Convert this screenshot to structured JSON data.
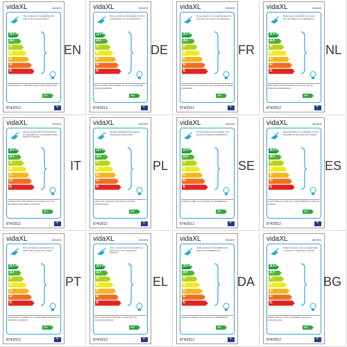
{
  "labels": [
    {
      "lang": "EN",
      "brand": "vidaXL",
      "code": "281403",
      "description": "This luminaire is compatible with bulbs of the energy classes:",
      "note": "The luminaire is sold with a bulb of the energy class:",
      "regulation": "874/2012",
      "class_badge": "A+"
    },
    {
      "lang": "DE",
      "brand": "vidaXL",
      "code": "281403",
      "description": "Diese Leuchte ist kompatibel mit den Leuchtmitteln der Energieklassen:",
      "note": "Diese Leuchte wird verkauft mit einem Leuchtmittel der Energieklasse:",
      "regulation": "874/2012",
      "class_badge": "A+"
    },
    {
      "lang": "FR",
      "brand": "vidaXL",
      "code": "281403",
      "description": "Ce luminaire est compatible avec les ampoules de classes énergétiques:",
      "note": "Ce luminaire est vendu avec une ampoule de la classe énergétique:",
      "regulation": "874/2012",
      "class_badge": "A+"
    },
    {
      "lang": "NL",
      "brand": "vidaXL",
      "code": "281403",
      "description": "Deze lamp is geschikt voor peren van de volgende energieklassen:",
      "note": "Deze lamp wordt verkocht met een peer van de volgende energieklasse:",
      "regulation": "874/2012",
      "class_badge": "A+"
    },
    {
      "lang": "IT",
      "brand": "vidaXL",
      "code": "281403",
      "description": "Questo apparecchio d'illuminazione è compatibile con le lampadine delle classi energetiche:",
      "note": "L'apparecchio d'illuminazione è venduto con una lampadina della classe energetica:",
      "regulation": "874/2012",
      "class_badge": "A+"
    },
    {
      "lang": "PL",
      "brand": "vidaXL",
      "code": "281403",
      "description": "Oprawa oświetleniowa zawiera wbudowane lampy LED.",
      "note": "Lampy nie mogą być zmieniane w oprawie oświetleniowej.",
      "regulation": "874/2012",
      "class_badge": "A+"
    },
    {
      "lang": "SE",
      "brand": "vidaXL",
      "code": "281403",
      "description": "Denna armatur är kompatibel med lampor av följande energiklasser:",
      "note": "Armaturen säljs med en lampa av energiklassen:",
      "regulation": "874/2012",
      "class_badge": "A+"
    },
    {
      "lang": "ES",
      "brand": "vidaXL",
      "code": "281403",
      "description": "Esta luminaria es compatible con las bombillas de las clases de energía:",
      "note": "La luminaria se vende con una bombilla de la clase de energía:",
      "regulation": "874/2012",
      "class_badge": "A+"
    },
    {
      "lang": "PT",
      "brand": "vidaXL",
      "code": "281403",
      "description": "Esta luminária é compatível com bolbos das classes de energia:",
      "note": "A luminária é vendida com uma lâmpada da classe de eficiência energética:",
      "regulation": "874/2012",
      "class_badge": "A+"
    },
    {
      "lang": "EL",
      "brand": "vidaXL",
      "code": "281403",
      "description": "Αυτό το φωτιστικό είναι συμβατό με λαμπτήρες των ενεργειακών κλάσεων:",
      "note": "Αυτό το φωτιστικό πωλείται με λαμπτήρα της ενεργειακής κλάσης:",
      "regulation": "874/2012",
      "class_badge": "A+"
    },
    {
      "lang": "DA",
      "brand": "vidaXL",
      "code": "281403",
      "description": "Dette armatur er kompatibel med pærer af energiklasserne:",
      "note": "Armaturet sælges med en pære af energiklassen:",
      "regulation": "874/2012",
      "class_badge": "A+"
    },
    {
      "lang": "BG",
      "brand": "vidaXL",
      "code": "281403",
      "description": "Осветителното тяло е съвместимо с крушки от енергийни класове:",
      "note": "Осветителното тяло се продава с крушка от енергиен клас:",
      "regulation": "874/2012",
      "class_badge": "A+"
    }
  ],
  "energy_classes": [
    {
      "label": "A++",
      "color": "#1b9a3a"
    },
    {
      "label": "A+",
      "color": "#52b331"
    },
    {
      "label": "A",
      "color": "#b6d21f"
    },
    {
      "label": "B",
      "color": "#f1e91b"
    },
    {
      "label": "C",
      "color": "#f7b51a"
    },
    {
      "label": "D",
      "color": "#ef6f21"
    },
    {
      "label": "E",
      "color": "#e3231c"
    }
  ],
  "colors": {
    "panel_border": "#2aa6d4",
    "eu_flag": "#233a96"
  }
}
